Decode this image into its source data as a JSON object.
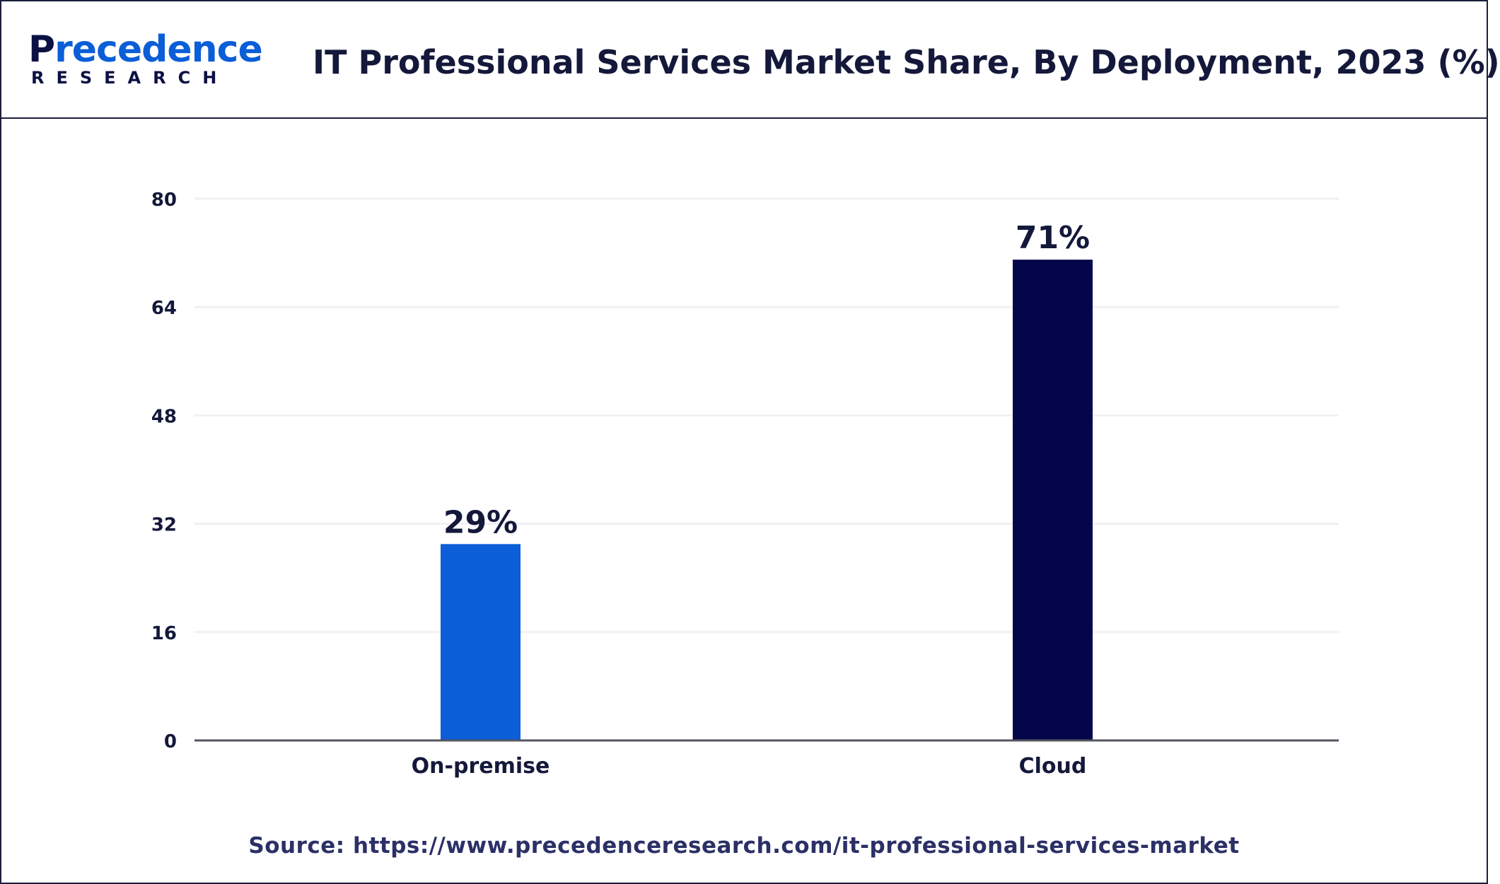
{
  "brand": {
    "name_prefix": "P",
    "name_rest": "recedence",
    "tagline": "RESEARCH",
    "primary_color": "#0b1044",
    "accent_color": "#0b5ed7"
  },
  "header": {
    "title": "IT Professional Services Market Share, By Deployment, 2023 (%)"
  },
  "chart_data": {
    "type": "bar",
    "title": "IT Professional Services Market Share, By Deployment, 2023 (%)",
    "xlabel": "",
    "ylabel": "",
    "ylim": [
      0,
      80
    ],
    "yticks": [
      0,
      16,
      32,
      48,
      64,
      80
    ],
    "categories": [
      "On-premise",
      "Cloud"
    ],
    "values": [
      29,
      71
    ],
    "data_labels": [
      "29%",
      "71%"
    ],
    "colors": [
      "#0b5ed7",
      "#05064a"
    ],
    "grid": true,
    "legend": "none"
  },
  "footer": {
    "source": "Source: https://www.precedenceresearch.com/it-professional-services-market"
  }
}
